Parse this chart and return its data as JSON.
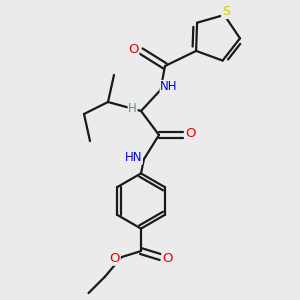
{
  "background_color": "#ebebeb",
  "bond_color": "#1a1a1a",
  "atom_colors": {
    "S": "#cccc00",
    "N": "#0000ee",
    "O": "#ee0000",
    "C": "#1a1a1a",
    "H": "#5a9090"
  },
  "figsize": [
    3.0,
    3.0
  ],
  "dpi": 100
}
